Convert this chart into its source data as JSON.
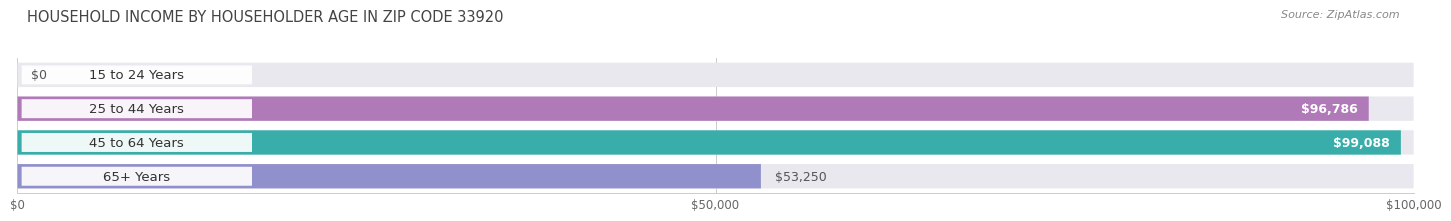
{
  "title": "HOUSEHOLD INCOME BY HOUSEHOLDER AGE IN ZIP CODE 33920",
  "source": "Source: ZipAtlas.com",
  "categories": [
    "15 to 24 Years",
    "25 to 44 Years",
    "45 to 64 Years",
    "65+ Years"
  ],
  "values": [
    0,
    96786,
    99088,
    53250
  ],
  "max_value": 100000,
  "bar_colors": [
    "#9fc3e0",
    "#b07ab8",
    "#38ada9",
    "#9090cc"
  ],
  "bg_bar_color": "#e8e8ee",
  "value_labels": [
    "$0",
    "$96,786",
    "$99,088",
    "$53,250"
  ],
  "value_inside": [
    false,
    true,
    true,
    false
  ],
  "x_ticks": [
    0,
    50000,
    100000
  ],
  "x_tick_labels": [
    "$0",
    "$50,000",
    "$100,000"
  ],
  "title_fontsize": 10.5,
  "source_fontsize": 8,
  "label_fontsize": 9.5,
  "value_fontsize": 9
}
